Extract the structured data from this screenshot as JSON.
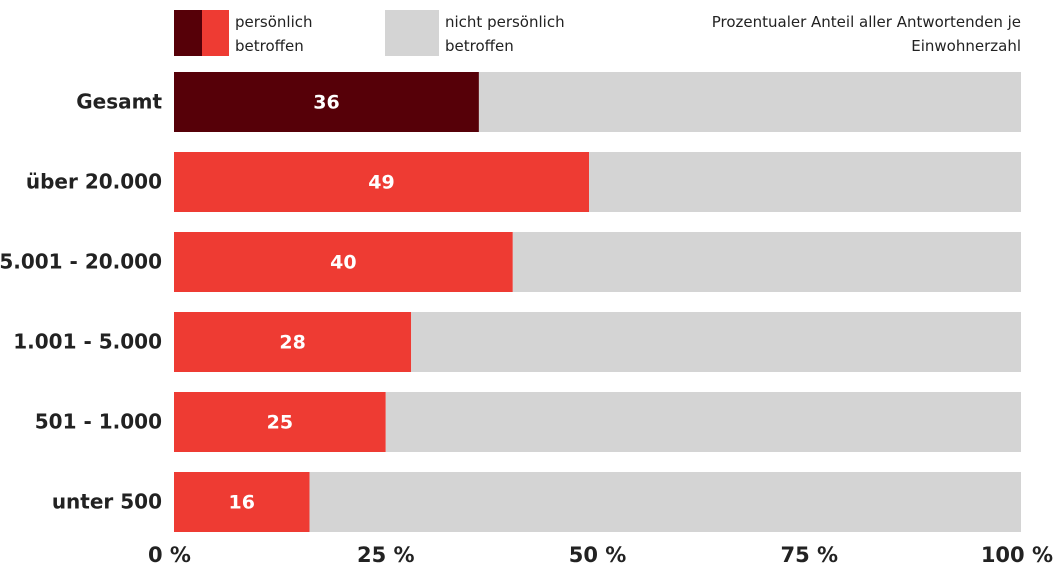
{
  "chart_data": {
    "type": "stacked_barh",
    "annotation": "Prozentualer Anteil aller Antwortenden je Einwohnerzahl",
    "categories": [
      "Gesamt",
      "über 20.000",
      "5.001 - 20.000",
      "1.001 - 5.000",
      "501 - 1.000",
      "unter 500"
    ],
    "series": [
      {
        "name": "persönlich betroffen",
        "color": "#ee3b33",
        "colors": [
          "#560008",
          "#ee3b33",
          "#ee3b33",
          "#ee3b33",
          "#ee3b33",
          "#ee3b33"
        ],
        "values": [
          36,
          49,
          40,
          28,
          25,
          16
        ]
      },
      {
        "name": "nicht persönlich betroffen",
        "color": "#d4d4d4",
        "values": [
          64,
          51,
          60,
          72,
          75,
          84
        ]
      }
    ],
    "xlim": [
      0,
      100
    ],
    "xticks": [
      {
        "value": 0,
        "label": "0 %"
      },
      {
        "value": 25,
        "label": "25 %"
      },
      {
        "value": 50,
        "label": "50 %"
      },
      {
        "value": 75,
        "label": "75 %"
      },
      {
        "value": 100,
        "label": "100 %"
      }
    ],
    "legend": "top"
  }
}
